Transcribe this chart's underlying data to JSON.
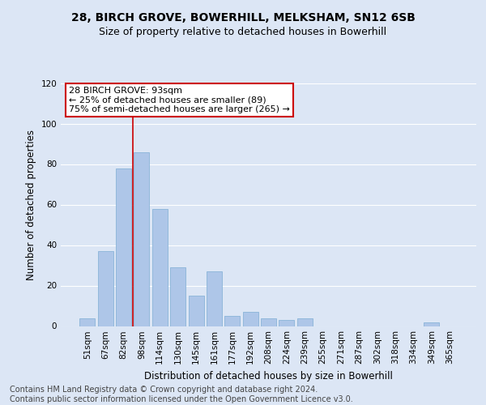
{
  "title1": "28, BIRCH GROVE, BOWERHILL, MELKSHAM, SN12 6SB",
  "title2": "Size of property relative to detached houses in Bowerhill",
  "xlabel": "Distribution of detached houses by size in Bowerhill",
  "ylabel": "Number of detached properties",
  "footer": "Contains HM Land Registry data © Crown copyright and database right 2024.\nContains public sector information licensed under the Open Government Licence v3.0.",
  "bar_labels": [
    "51sqm",
    "67sqm",
    "82sqm",
    "98sqm",
    "114sqm",
    "130sqm",
    "145sqm",
    "161sqm",
    "177sqm",
    "192sqm",
    "208sqm",
    "224sqm",
    "239sqm",
    "255sqm",
    "271sqm",
    "287sqm",
    "302sqm",
    "318sqm",
    "334sqm",
    "349sqm",
    "365sqm"
  ],
  "bar_values": [
    4,
    37,
    78,
    86,
    58,
    29,
    15,
    27,
    5,
    7,
    4,
    3,
    4,
    0,
    0,
    0,
    0,
    0,
    0,
    2,
    0
  ],
  "bar_color": "#aec6e8",
  "bar_edge_color": "#8ab4d8",
  "vline_color": "#cc0000",
  "annotation_text": "28 BIRCH GROVE: 93sqm\n← 25% of detached houses are smaller (89)\n75% of semi-detached houses are larger (265) →",
  "ylim": [
    0,
    120
  ],
  "yticks": [
    0,
    20,
    40,
    60,
    80,
    100,
    120
  ],
  "bg_color": "#dce6f5",
  "plot_bg_color": "#dce6f5",
  "grid_color": "#ffffff",
  "title1_fontsize": 10,
  "title2_fontsize": 9,
  "xlabel_fontsize": 8.5,
  "ylabel_fontsize": 8.5,
  "footer_fontsize": 7.0,
  "tick_fontsize": 7.5,
  "ann_fontsize": 8.0
}
